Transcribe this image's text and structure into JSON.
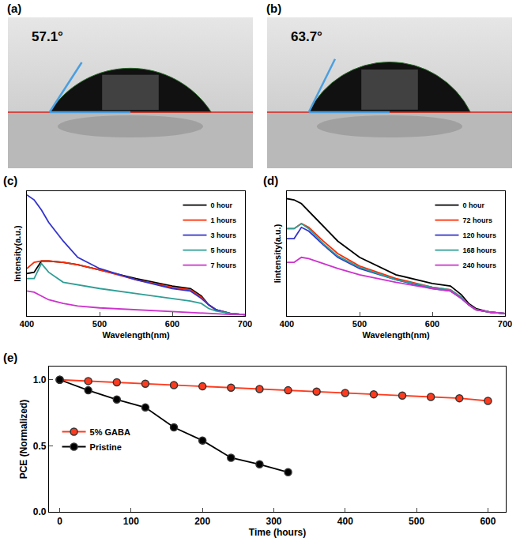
{
  "chart_data": [
    {
      "type": "contact_angle",
      "panel": "(a)",
      "angle": 57.1,
      "label": "57.1°"
    },
    {
      "type": "contact_angle",
      "panel": "(b)",
      "angle": 63.7,
      "label": "63.7°"
    },
    {
      "type": "line",
      "panel": "(c)",
      "x_label": "Wavelength(nm)",
      "y_label": "Intensity(a.u.)",
      "x": [
        400,
        410,
        420,
        430,
        450,
        470,
        500,
        550,
        600,
        625,
        640,
        650,
        660,
        680,
        700
      ],
      "series": [
        {
          "name": "0 hour",
          "color": "#000000",
          "values": [
            0.34,
            0.35,
            0.44,
            0.44,
            0.43,
            0.41,
            0.37,
            0.3,
            0.24,
            0.22,
            0.16,
            0.09,
            0.05,
            0.02,
            0.01
          ]
        },
        {
          "name": "1 hours",
          "color": "#ff2a00",
          "values": [
            0.38,
            0.43,
            0.44,
            0.44,
            0.43,
            0.41,
            0.37,
            0.29,
            0.23,
            0.21,
            0.15,
            0.09,
            0.05,
            0.02,
            0.01
          ]
        },
        {
          "name": "3 hours",
          "color": "#3333cc",
          "values": [
            0.97,
            0.93,
            0.85,
            0.75,
            0.6,
            0.47,
            0.38,
            0.29,
            0.22,
            0.2,
            0.14,
            0.09,
            0.05,
            0.02,
            0.01
          ]
        },
        {
          "name": "5 hours",
          "color": "#2e9e96",
          "values": [
            0.3,
            0.3,
            0.42,
            0.35,
            0.27,
            0.25,
            0.22,
            0.18,
            0.14,
            0.12,
            0.1,
            0.06,
            0.04,
            0.02,
            0.01
          ]
        },
        {
          "name": "7 hours",
          "color": "#cc33cc",
          "values": [
            0.2,
            0.19,
            0.16,
            0.13,
            0.1,
            0.08,
            0.065,
            0.05,
            0.035,
            0.03,
            0.025,
            0.02,
            0.015,
            0.012,
            0.01
          ]
        }
      ],
      "xlim": [
        400,
        700
      ],
      "xticks": [
        400,
        500,
        600,
        700
      ],
      "ylim": [
        0,
        1
      ],
      "tick_labels": "x",
      "legend": "upper right"
    },
    {
      "type": "line",
      "panel": "(d)",
      "x_label": "Wavelength(nm)",
      "y_label": "Iintensity(a.u.)",
      "x": [
        400,
        410,
        420,
        430,
        450,
        470,
        500,
        550,
        600,
        625,
        640,
        650,
        660,
        680,
        700
      ],
      "series": [
        {
          "name": "0 hour",
          "color": "#000000",
          "values": [
            0.94,
            0.93,
            0.9,
            0.84,
            0.72,
            0.6,
            0.47,
            0.33,
            0.26,
            0.24,
            0.17,
            0.1,
            0.06,
            0.03,
            0.02
          ]
        },
        {
          "name": "72 hours",
          "color": "#ff2a00",
          "values": [
            0.7,
            0.7,
            0.74,
            0.71,
            0.6,
            0.5,
            0.4,
            0.3,
            0.23,
            0.21,
            0.15,
            0.09,
            0.05,
            0.03,
            0.02
          ]
        },
        {
          "name": "120 hours",
          "color": "#3333cc",
          "values": [
            0.62,
            0.62,
            0.71,
            0.68,
            0.57,
            0.47,
            0.38,
            0.29,
            0.22,
            0.2,
            0.14,
            0.09,
            0.05,
            0.03,
            0.02
          ]
        },
        {
          "name": "168 hours",
          "color": "#2e9e96",
          "values": [
            0.7,
            0.7,
            0.74,
            0.7,
            0.58,
            0.48,
            0.39,
            0.29,
            0.23,
            0.21,
            0.15,
            0.09,
            0.05,
            0.03,
            0.02
          ]
        },
        {
          "name": "240 hours",
          "color": "#cc33cc",
          "values": [
            0.43,
            0.43,
            0.47,
            0.46,
            0.42,
            0.38,
            0.33,
            0.27,
            0.22,
            0.2,
            0.14,
            0.09,
            0.05,
            0.03,
            0.02
          ]
        }
      ],
      "xlim": [
        400,
        700
      ],
      "xticks": [
        400,
        500,
        600,
        700
      ],
      "ylim": [
        0,
        1
      ],
      "tick_labels": "x",
      "legend": "upper right"
    },
    {
      "type": "line",
      "panel": "(e)",
      "x_label": "Time (hours)",
      "y_label": "PCE (Normalized)",
      "x": [
        0,
        40,
        80,
        120,
        160,
        200,
        240,
        280,
        320,
        360,
        400,
        440,
        480,
        520,
        560,
        600
      ],
      "series": [
        {
          "name": "5% GABA",
          "color": "#ff3b1f",
          "marker": "circle",
          "values": [
            1.0,
            0.99,
            0.98,
            0.97,
            0.96,
            0.95,
            0.94,
            0.93,
            0.92,
            0.91,
            0.9,
            0.89,
            0.88,
            0.87,
            0.86,
            0.84
          ]
        },
        {
          "name": "Pristine",
          "color": "#000000",
          "marker": "circle",
          "values": [
            1.0,
            0.92,
            0.85,
            0.79,
            0.64,
            0.54,
            0.41,
            0.36,
            0.3,
            null,
            null,
            null,
            null,
            null,
            null,
            null
          ]
        }
      ],
      "xlim": [
        -15,
        625
      ],
      "xticks": [
        0,
        100,
        200,
        300,
        400,
        500,
        600
      ],
      "ylim": [
        0,
        1.1
      ],
      "yticks": [
        {
          "value": 0,
          "label": "0.0"
        },
        {
          "value": 0.5,
          "label": "0.5"
        },
        {
          "value": 1.0,
          "label": "1.0"
        }
      ],
      "legend": "left"
    }
  ]
}
